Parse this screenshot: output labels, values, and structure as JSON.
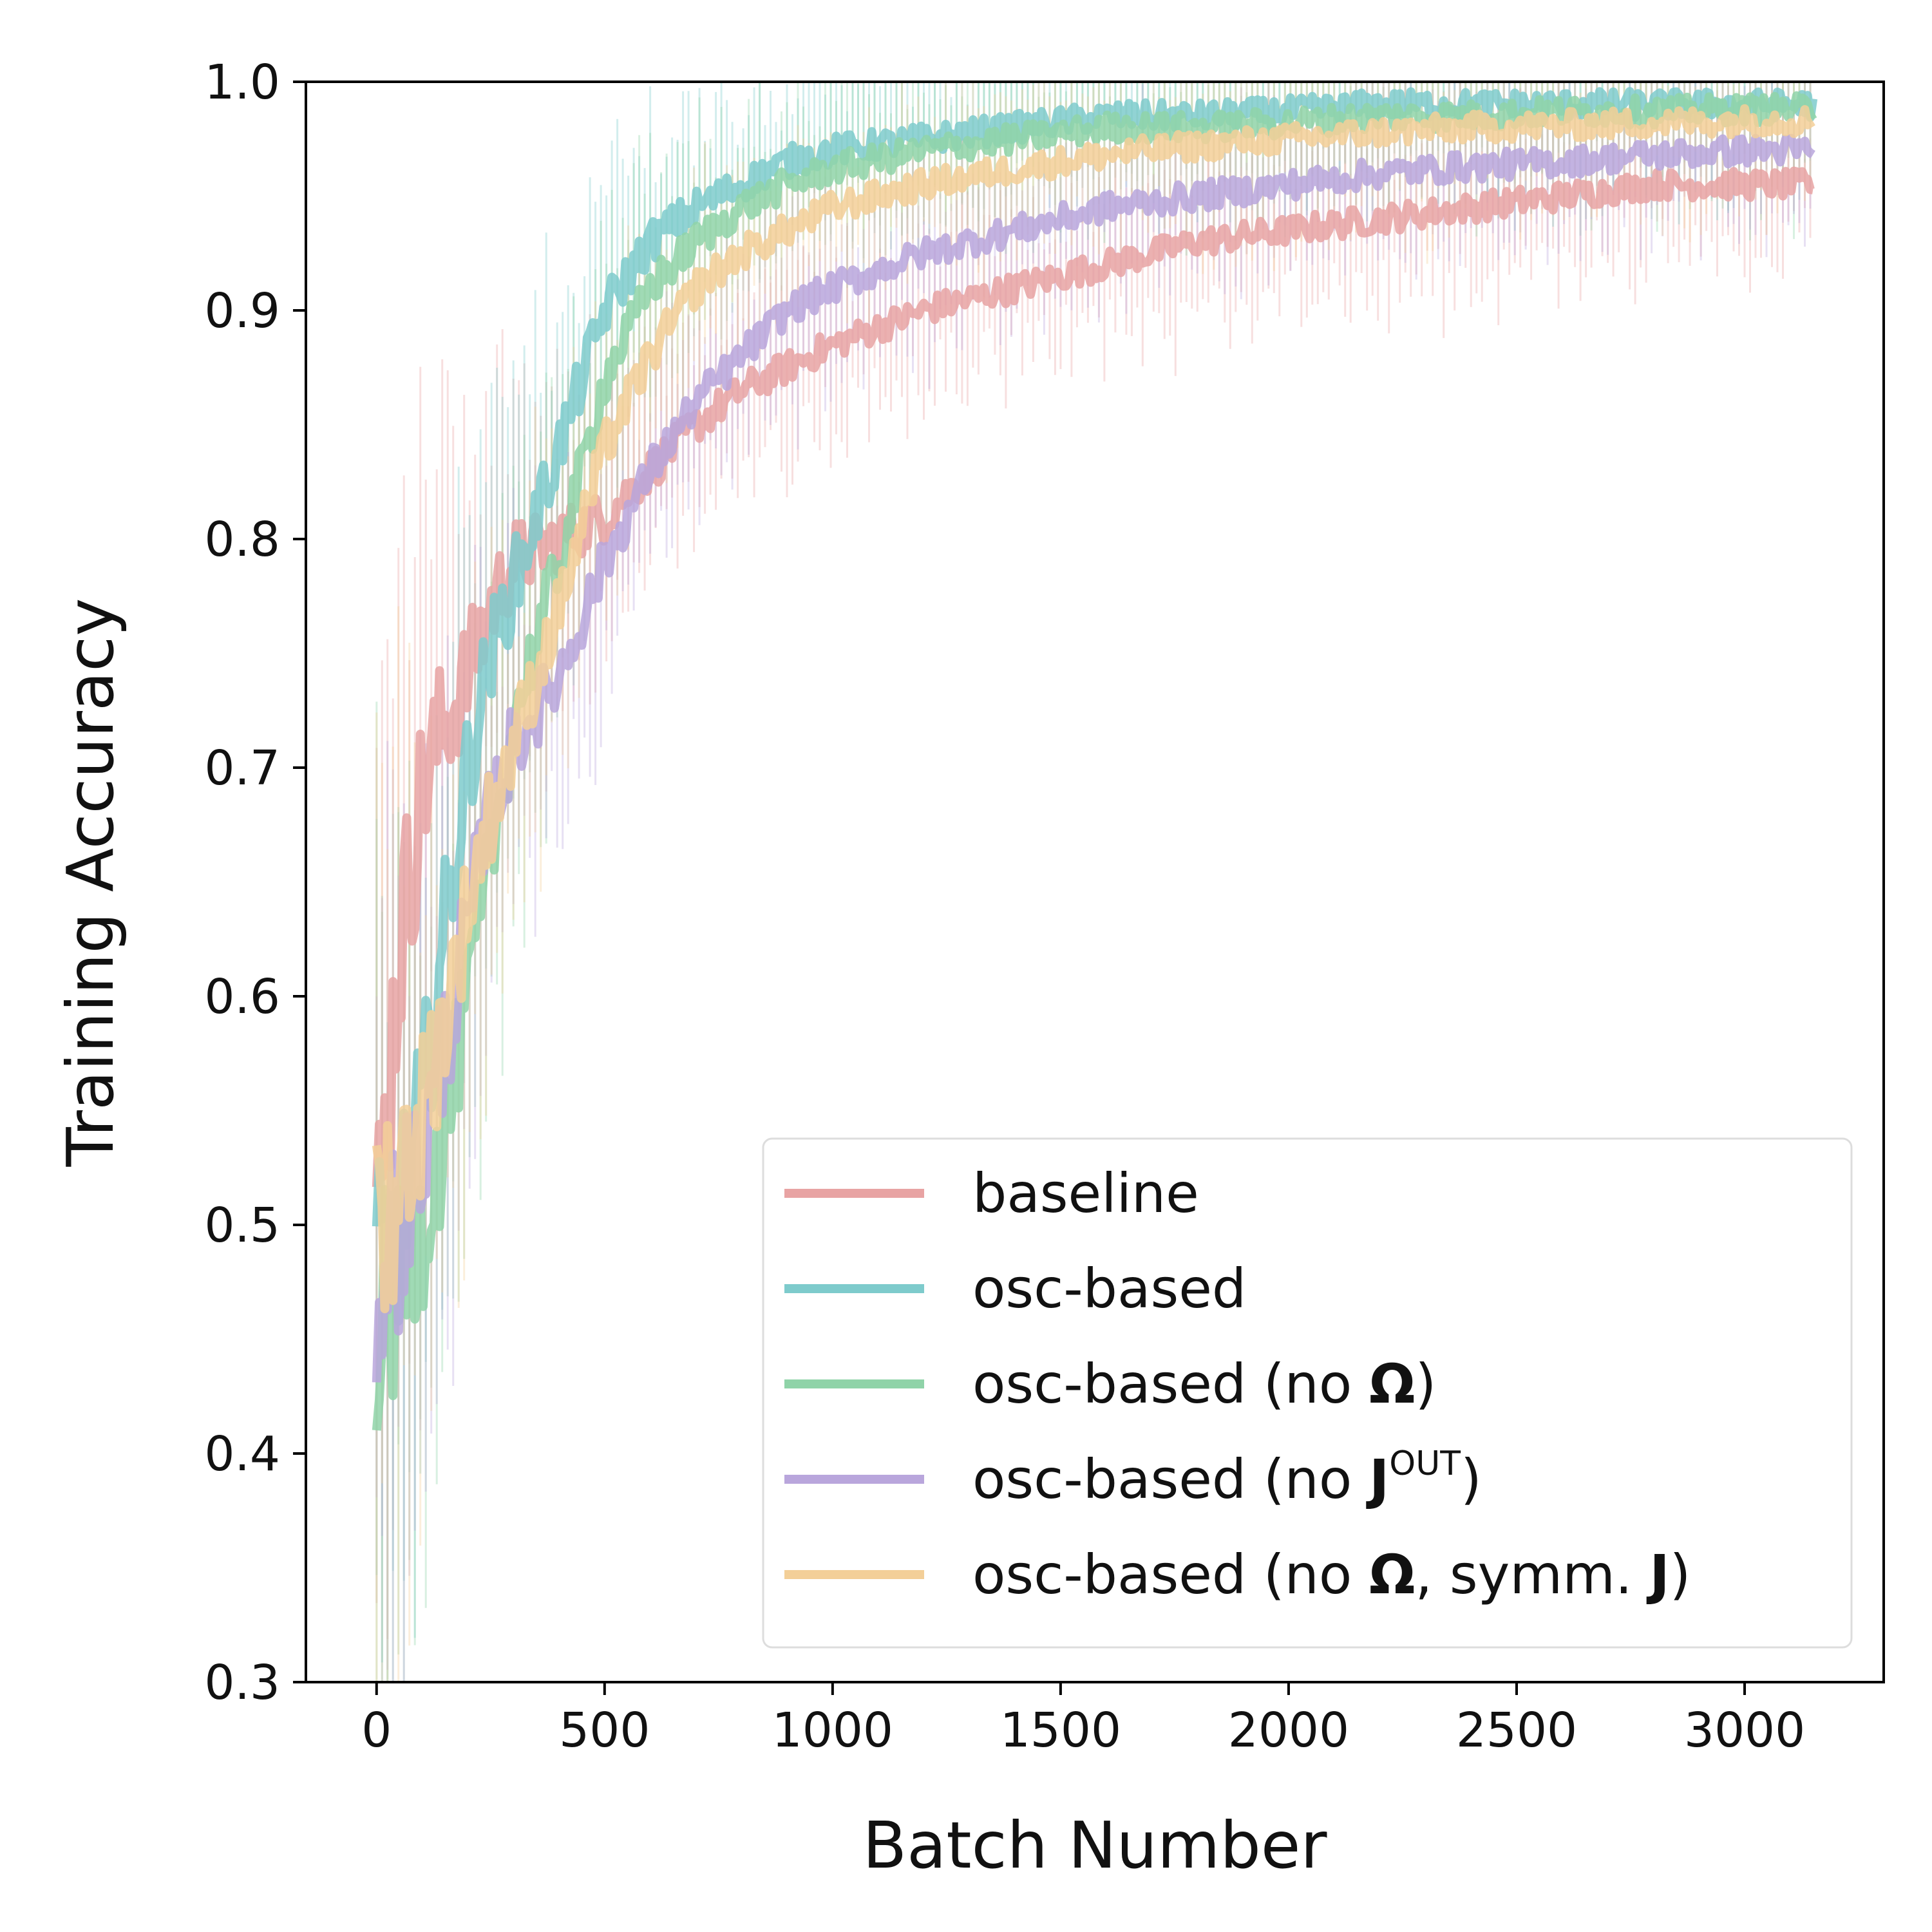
{
  "chart_data": {
    "type": "line",
    "xlabel": "Batch Number",
    "ylabel": "Training Accuracy",
    "xlim": [
      -155,
      3305
    ],
    "ylim": [
      0.3,
      1.0
    ],
    "xticks": [
      0,
      500,
      1000,
      1500,
      2000,
      2500,
      3000
    ],
    "yticks": [
      0.3,
      0.4,
      0.5,
      0.6,
      0.7,
      0.8,
      0.9,
      1.0
    ],
    "xtick_labels": [
      "0",
      "500",
      "1000",
      "1500",
      "2000",
      "2500",
      "3000"
    ],
    "ytick_labels": [
      "0.3",
      "0.4",
      "0.5",
      "0.6",
      "0.7",
      "0.8",
      "0.9",
      "1.0"
    ],
    "grid": false,
    "legend_position": "lower-right",
    "series": [
      {
        "name": "baseline",
        "legend_parts": [
          {
            "t": "baseline",
            "b": false
          }
        ],
        "color": "#e8a3a3",
        "x": [
          0,
          50,
          100,
          150,
          200,
          250,
          300,
          400,
          500,
          600,
          700,
          800,
          900,
          1000,
          1200,
          1400,
          1600,
          1800,
          2000,
          2200,
          2400,
          2600,
          2800,
          3000,
          3150
        ],
        "y": [
          0.49,
          0.62,
          0.69,
          0.72,
          0.74,
          0.77,
          0.79,
          0.8,
          0.81,
          0.83,
          0.85,
          0.865,
          0.875,
          0.885,
          0.9,
          0.91,
          0.92,
          0.93,
          0.935,
          0.94,
          0.945,
          0.95,
          0.955,
          0.955,
          0.955
        ]
      },
      {
        "name": "osc-based",
        "legend_parts": [
          {
            "t": "osc-based",
            "b": false
          }
        ],
        "color": "#7ecbcc",
        "x": [
          0,
          50,
          100,
          150,
          200,
          250,
          300,
          400,
          500,
          600,
          700,
          800,
          900,
          1000,
          1200,
          1400,
          1600,
          1800,
          2000,
          2200,
          2400,
          2600,
          2800,
          3000,
          3150
        ],
        "y": [
          0.47,
          0.5,
          0.55,
          0.63,
          0.7,
          0.75,
          0.78,
          0.84,
          0.9,
          0.93,
          0.945,
          0.955,
          0.965,
          0.97,
          0.975,
          0.98,
          0.985,
          0.985,
          0.987,
          0.99,
          0.99,
          0.99,
          0.99,
          0.99,
          0.99
        ]
      },
      {
        "name": "osc-based (no Ω)",
        "legend_parts": [
          {
            "t": "osc-based (no ",
            "b": false
          },
          {
            "t": "Ω",
            "b": true
          },
          {
            "t": ")",
            "b": false
          }
        ],
        "color": "#8fd3a8",
        "x": [
          0,
          50,
          100,
          150,
          200,
          250,
          300,
          400,
          500,
          600,
          700,
          800,
          900,
          1000,
          1200,
          1400,
          1600,
          1800,
          2000,
          2200,
          2400,
          2600,
          2800,
          3000,
          3150
        ],
        "y": [
          0.46,
          0.47,
          0.5,
          0.54,
          0.6,
          0.66,
          0.72,
          0.79,
          0.87,
          0.91,
          0.93,
          0.945,
          0.955,
          0.962,
          0.97,
          0.975,
          0.98,
          0.98,
          0.982,
          0.985,
          0.985,
          0.987,
          0.987,
          0.988,
          0.988
        ]
      },
      {
        "name": "osc-based (no J^OUT)",
        "legend_parts": [
          {
            "t": "osc-based (no ",
            "b": false
          },
          {
            "t": "J",
            "b": true
          },
          {
            "t": "OUT",
            "b": false,
            "sup": true
          },
          {
            "t": ")",
            "b": false
          }
        ],
        "color": "#b9a6dc",
        "x": [
          0,
          50,
          100,
          150,
          200,
          250,
          300,
          400,
          500,
          600,
          700,
          800,
          900,
          1000,
          1200,
          1400,
          1600,
          1800,
          2000,
          2200,
          2400,
          2600,
          2800,
          3000,
          3150
        ],
        "y": [
          0.48,
          0.5,
          0.53,
          0.58,
          0.63,
          0.68,
          0.71,
          0.74,
          0.79,
          0.83,
          0.86,
          0.88,
          0.9,
          0.91,
          0.925,
          0.935,
          0.945,
          0.95,
          0.955,
          0.96,
          0.963,
          0.965,
          0.968,
          0.97,
          0.97
        ]
      },
      {
        "name": "osc-based (no Ω, symm. J)",
        "legend_parts": [
          {
            "t": "osc-based (no ",
            "b": false
          },
          {
            "t": "Ω",
            "b": true
          },
          {
            "t": ", symm. ",
            "b": false
          },
          {
            "t": "J",
            "b": true
          },
          {
            "t": ")",
            "b": false
          }
        ],
        "color": "#f3cf98",
        "x": [
          0,
          50,
          100,
          150,
          200,
          250,
          300,
          400,
          500,
          600,
          700,
          800,
          900,
          1000,
          1200,
          1400,
          1600,
          1800,
          2000,
          2200,
          2400,
          2600,
          2800,
          3000,
          3150
        ],
        "y": [
          0.5,
          0.52,
          0.55,
          0.59,
          0.64,
          0.68,
          0.71,
          0.77,
          0.84,
          0.88,
          0.91,
          0.925,
          0.935,
          0.945,
          0.955,
          0.962,
          0.968,
          0.972,
          0.975,
          0.978,
          0.98,
          0.981,
          0.982,
          0.983,
          0.983
        ]
      }
    ]
  }
}
